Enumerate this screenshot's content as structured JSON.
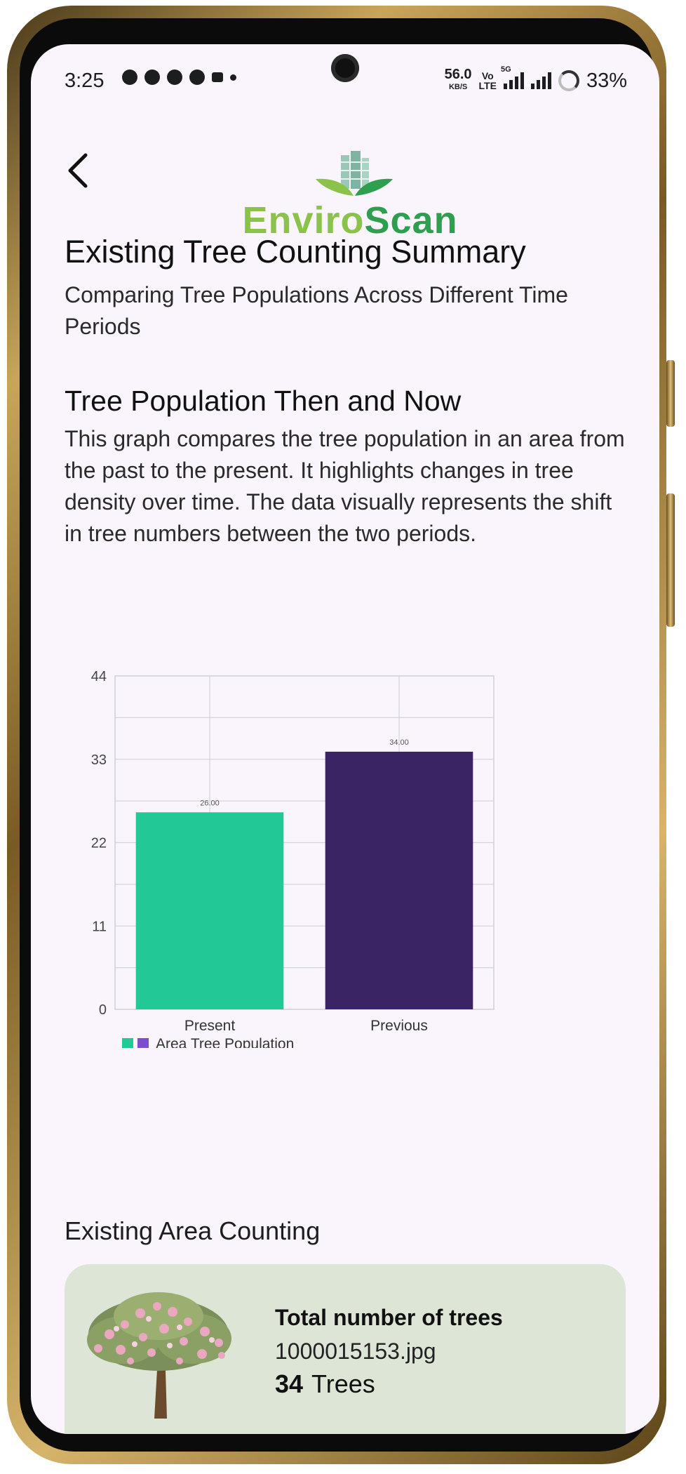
{
  "status_bar": {
    "time": "3:25",
    "speed_value": "56.0",
    "speed_unit": "KB/S",
    "volte_top": "Vo",
    "volte_bottom": "LTE",
    "network": "5G",
    "battery": "33%"
  },
  "header": {
    "logo_part1": "Enviro",
    "logo_part2": "Scan"
  },
  "summary": {
    "title": "Existing Tree Counting Summary",
    "subtitle": "Comparing Tree Populations Across Different Time Periods"
  },
  "graph_section": {
    "title": "Tree Population Then and Now",
    "description": "This graph compares the tree population in an area from the past to the present. It highlights changes in tree density over time. The data visually represents the shift in tree numbers between the two periods."
  },
  "chart_data": {
    "type": "bar",
    "categories": [
      "Present",
      "Previous"
    ],
    "series": [
      {
        "name": "Area Tree Population",
        "values": [
          26,
          34
        ],
        "value_labels": [
          "26.00",
          "34.00"
        ]
      }
    ],
    "bar_colors": [
      "#22c896",
      "#3b2463"
    ],
    "legend_colors": [
      "#22c896",
      "#7c4dcc"
    ],
    "yticks": [
      0,
      11,
      22,
      33,
      44
    ],
    "ylim": [
      0,
      44
    ],
    "grid": true,
    "legend_position": "bottom-left"
  },
  "existing_area": {
    "section_title": "Existing Area Counting",
    "card_title": "Total number of trees",
    "file_name": "1000015153.jpg",
    "count": "34",
    "count_unit": "Trees"
  },
  "icons": {
    "back": "arrow-left-icon",
    "logo": "building-leaves-logo",
    "tree": "flowering-tree-image"
  }
}
